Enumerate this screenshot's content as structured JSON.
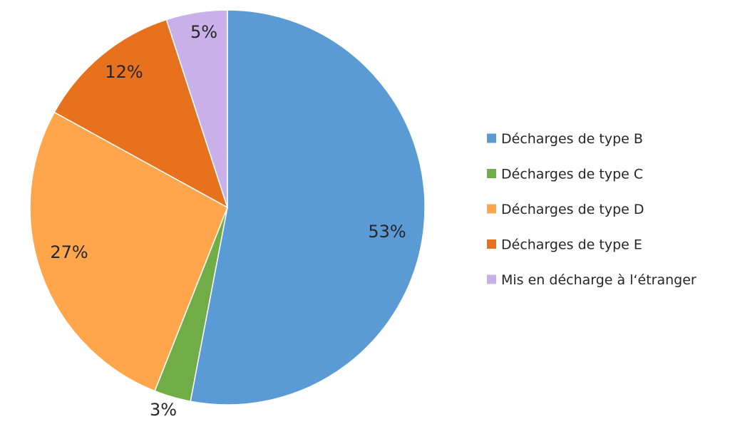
{
  "chart_data": {
    "type": "pie",
    "title": "",
    "start_angle_deg": 0,
    "direction": "clockwise",
    "legend_position": "right",
    "slices": [
      {
        "label": "Décharges de type B",
        "value": 53,
        "value_label": "53%",
        "color": "#5b9bd5"
      },
      {
        "label": "Décharges de type C",
        "value": 3,
        "value_label": "3%",
        "color": "#70ad47"
      },
      {
        "label": "Décharges de type D",
        "value": 27,
        "value_label": "27%",
        "color": "#ffa64d"
      },
      {
        "label": "Décharges de type E",
        "value": 12,
        "value_label": "12%",
        "color": "#e8711e"
      },
      {
        "label": "Mis en décharge à l‘étranger",
        "value": 5,
        "value_label": "5%",
        "color": "#c9b0e8"
      }
    ]
  }
}
